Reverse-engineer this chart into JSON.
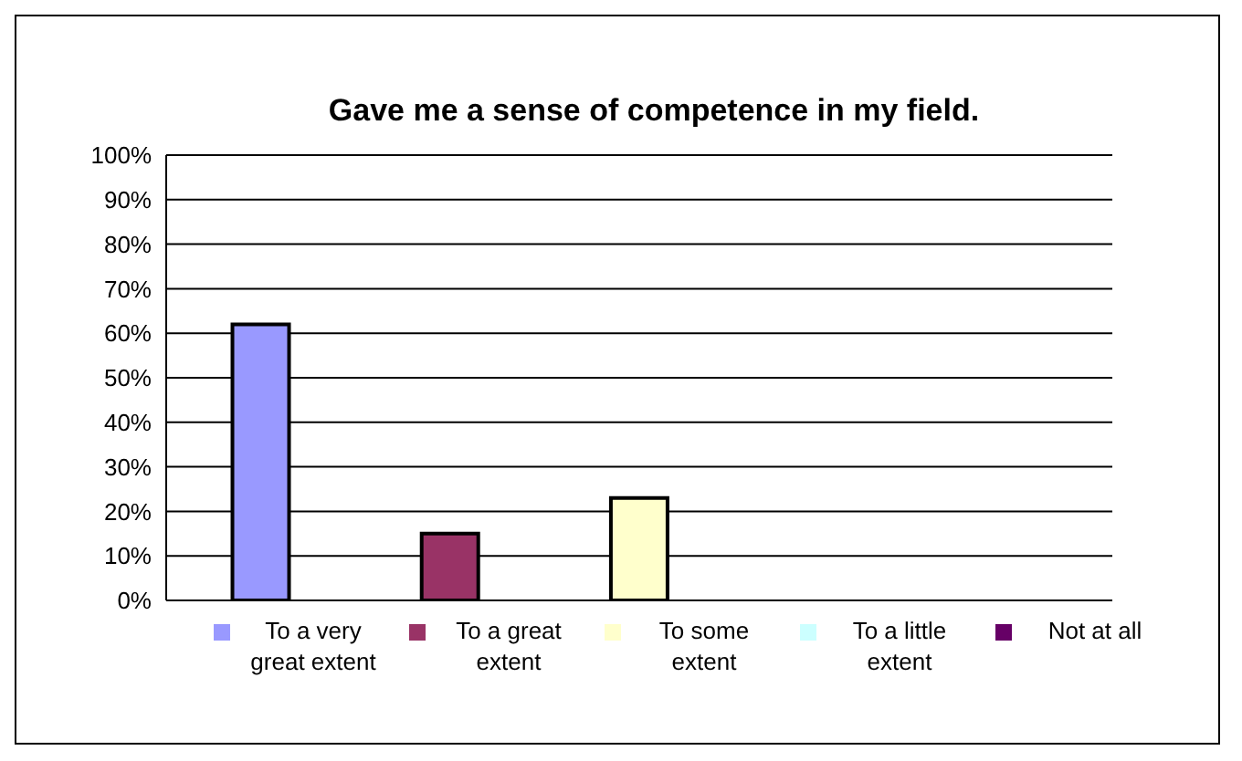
{
  "chart_data": {
    "type": "bar",
    "title": "Gave me a sense of competence in my field.",
    "categories": [
      null,
      null,
      null,
      null,
      null
    ],
    "series": [
      {
        "name": "To a very great extent",
        "color": "#9999ff",
        "values": [
          62,
          null,
          null,
          null,
          null
        ]
      },
      {
        "name": "To a great extent",
        "color": "#993366",
        "values": [
          null,
          15,
          null,
          null,
          null
        ]
      },
      {
        "name": "To some extent",
        "color": "#ffffcc",
        "values": [
          null,
          null,
          23,
          null,
          null
        ]
      },
      {
        "name": "To a little extent",
        "color": "#ccffff",
        "values": [
          null,
          null,
          null,
          0,
          null
        ]
      },
      {
        "name": "Not at all",
        "color": "#660066",
        "values": [
          null,
          null,
          null,
          null,
          0
        ]
      }
    ],
    "ylim": [
      0,
      100
    ],
    "yticks": [
      {
        "value": 0,
        "label": "0%"
      },
      {
        "value": 10,
        "label": "10%"
      },
      {
        "value": 20,
        "label": "20%"
      },
      {
        "value": 30,
        "label": "30%"
      },
      {
        "value": 40,
        "label": "40%"
      },
      {
        "value": 50,
        "label": "50%"
      },
      {
        "value": 60,
        "label": "60%"
      },
      {
        "value": 70,
        "label": "70%"
      },
      {
        "value": 80,
        "label": "80%"
      },
      {
        "value": 90,
        "label": "90%"
      },
      {
        "value": 100,
        "label": "100%"
      }
    ],
    "grid": "y",
    "legend": "bottom",
    "tick_labels": "y"
  }
}
